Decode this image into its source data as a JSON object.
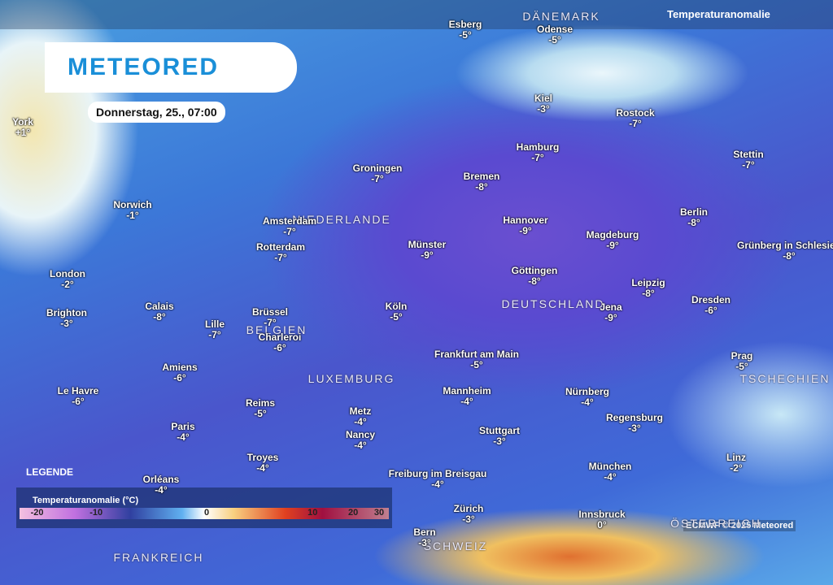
{
  "header": {
    "logo": "METEORED",
    "date": "Donnerstag, 25., 07:00",
    "layer": "Temperaturanomalie"
  },
  "countries": [
    "DÄNEMARK",
    "NIEDERLANDE",
    "DEUTSCHLAND",
    "BELGIEN",
    "LUXEMBURG",
    "FRANKREICH",
    "SCHWEIZ",
    "TSCHECHIEN",
    "ÖSTERREICH"
  ],
  "cities": [
    {
      "name": "York",
      "value": "+1°"
    },
    {
      "name": "Norwich",
      "value": "-1°"
    },
    {
      "name": "London",
      "value": "-2°"
    },
    {
      "name": "Brighton",
      "value": "-3°"
    },
    {
      "name": "Calais",
      "value": "-8°"
    },
    {
      "name": "Lille",
      "value": "-7°"
    },
    {
      "name": "Brüssel",
      "value": "-7°"
    },
    {
      "name": "Charleroi",
      "value": "-6°"
    },
    {
      "name": "Amiens",
      "value": "-6°"
    },
    {
      "name": "Le Havre",
      "value": "-6°"
    },
    {
      "name": "Paris",
      "value": "-4°"
    },
    {
      "name": "Reims",
      "value": "-5°"
    },
    {
      "name": "Troyes",
      "value": "-4°"
    },
    {
      "name": "Orléans",
      "value": "-4°"
    },
    {
      "name": "Metz",
      "value": "-4°"
    },
    {
      "name": "Nancy",
      "value": "-4°"
    },
    {
      "name": "Groningen",
      "value": "-7°"
    },
    {
      "name": "Amsterdam",
      "value": "-7°"
    },
    {
      "name": "Rotterdam",
      "value": "-7°"
    },
    {
      "name": "Münster",
      "value": "-9°"
    },
    {
      "name": "Köln",
      "value": "-5°"
    },
    {
      "name": "Frankfurt am Main",
      "value": "-5°"
    },
    {
      "name": "Mannheim",
      "value": "-4°"
    },
    {
      "name": "Stuttgart",
      "value": "-3°"
    },
    {
      "name": "Freiburg im Breisgau",
      "value": "-4°"
    },
    {
      "name": "Zürich",
      "value": "-3°"
    },
    {
      "name": "Bern",
      "value": "-3°"
    },
    {
      "name": "Esberg",
      "value": "-5°"
    },
    {
      "name": "Odense",
      "value": "-5°"
    },
    {
      "name": "Kiel",
      "value": "-3°"
    },
    {
      "name": "Hamburg",
      "value": "-7°"
    },
    {
      "name": "Bremen",
      "value": "-8°"
    },
    {
      "name": "Rostock",
      "value": "-7°"
    },
    {
      "name": "Stettin",
      "value": "-7°"
    },
    {
      "name": "Berlin",
      "value": "-8°"
    },
    {
      "name": "Hannover",
      "value": "-9°"
    },
    {
      "name": "Magdeburg",
      "value": "-9°"
    },
    {
      "name": "Göttingen",
      "value": "-8°"
    },
    {
      "name": "Leipzig",
      "value": "-8°"
    },
    {
      "name": "Jena",
      "value": "-9°"
    },
    {
      "name": "Dresden",
      "value": "-6°"
    },
    {
      "name": "Grünberg in Schlesien",
      "value": "-8°"
    },
    {
      "name": "Prag",
      "value": "-5°"
    },
    {
      "name": "Nürnberg",
      "value": "-4°"
    },
    {
      "name": "Regensburg",
      "value": "-3°"
    },
    {
      "name": "München",
      "value": "-4°"
    },
    {
      "name": "Linz",
      "value": "-2°"
    },
    {
      "name": "Innsbruck",
      "value": "0°"
    }
  ],
  "legend": {
    "label": "LEGENDE",
    "title": "Temperaturanomalie (°C)",
    "ticks": [
      "-20",
      "-10",
      "0",
      "10",
      "20",
      "30"
    ]
  },
  "credit": "ECMWF © 2025 Meteored"
}
